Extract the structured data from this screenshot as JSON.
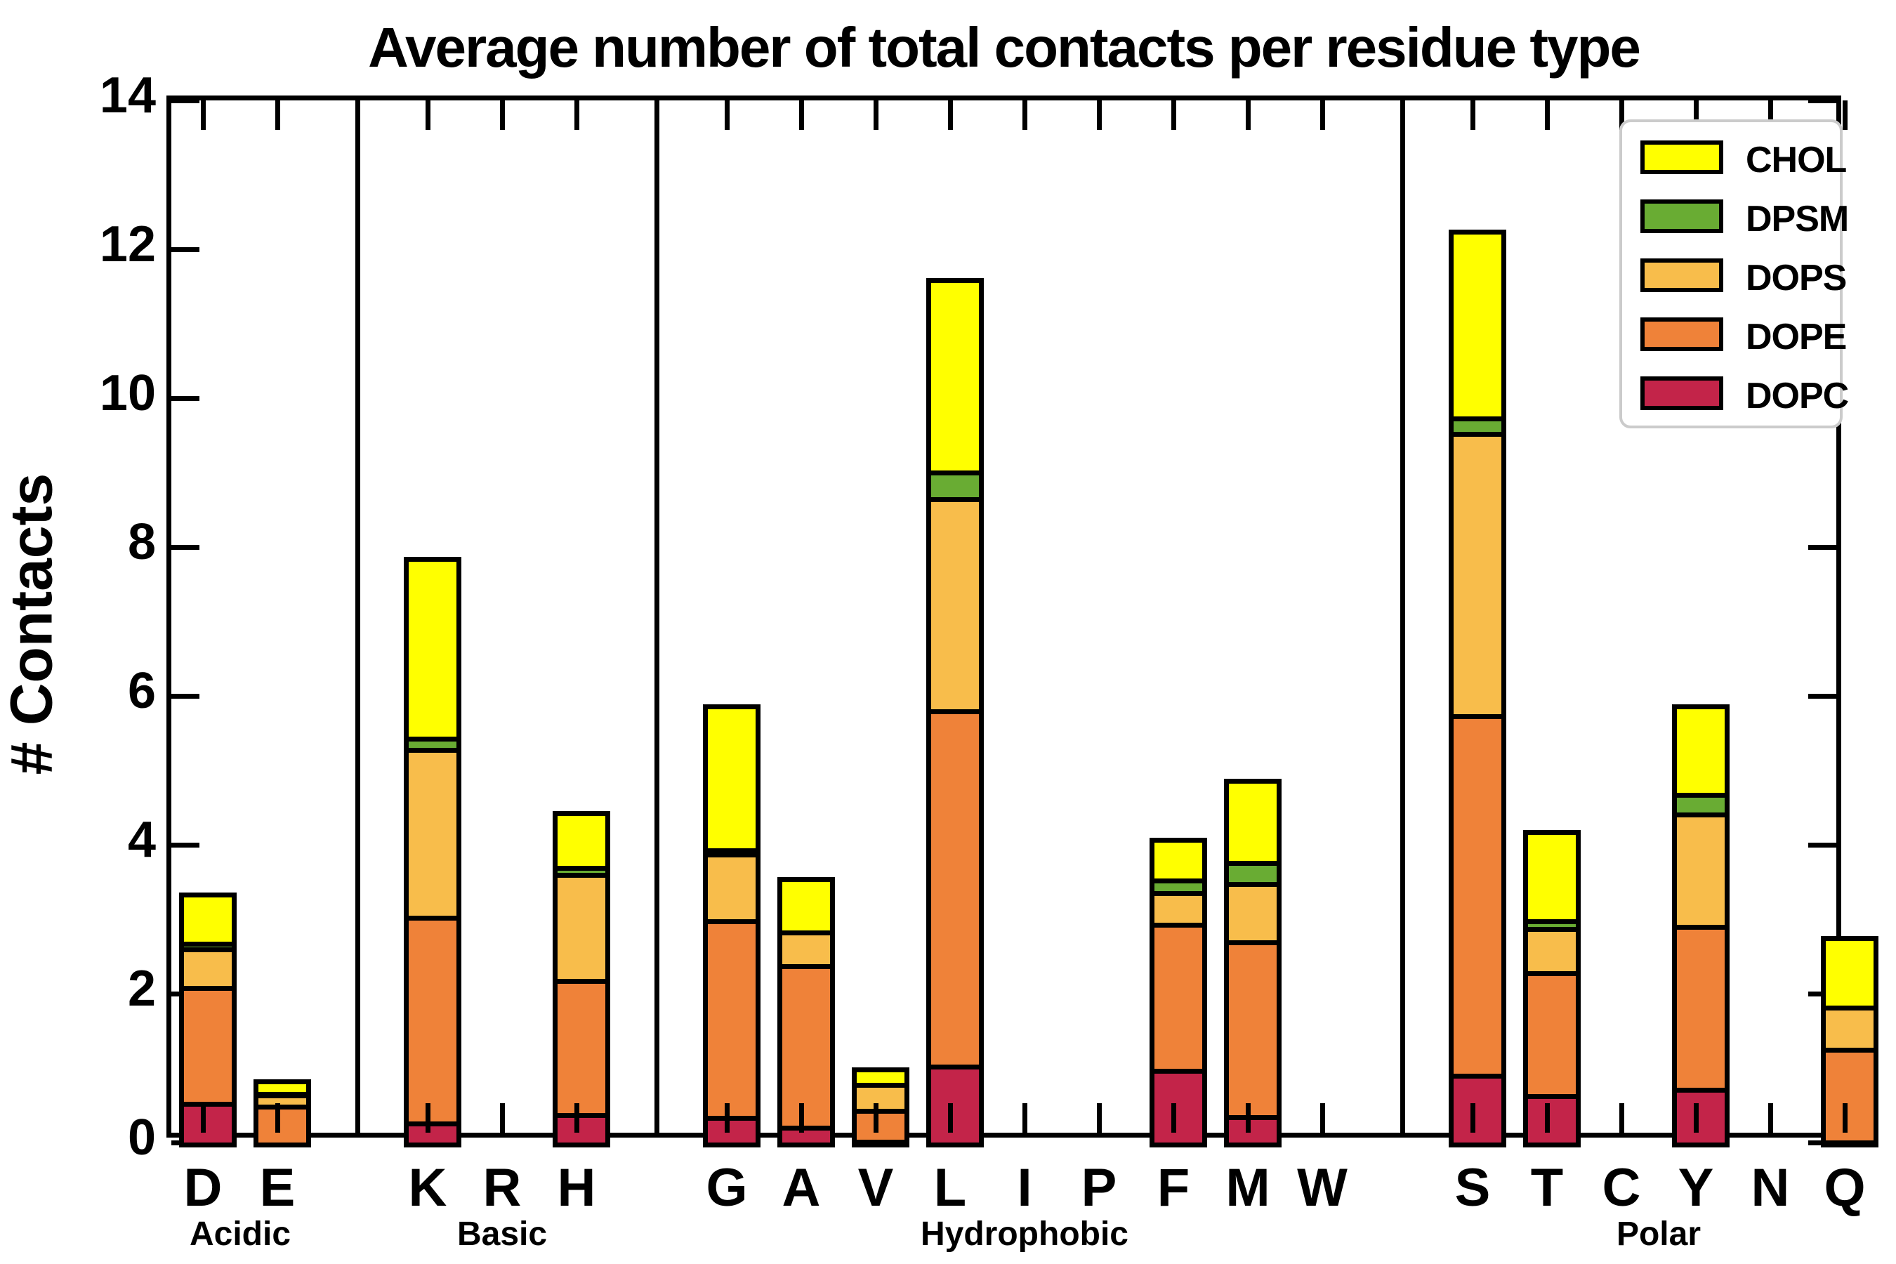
{
  "title": "Average number of total contacts per residue type",
  "ylabel": "# Contacts",
  "chart_data": {
    "type": "bar",
    "stacked": true,
    "title": "Average number of total contacts per residue type",
    "xlabel": "",
    "ylabel": "# Contacts",
    "ylim": [
      0,
      14
    ],
    "yticks": [
      0,
      2,
      4,
      6,
      8,
      10,
      12,
      14
    ],
    "grid": false,
    "legend_position": "upper right",
    "categories": [
      "D",
      "E",
      "K",
      "R",
      "H",
      "G",
      "A",
      "V",
      "L",
      "I",
      "P",
      "F",
      "M",
      "W",
      "S",
      "T",
      "C",
      "Y",
      "N",
      "Q"
    ],
    "groups": [
      {
        "label": "Acidic",
        "categories": [
          "D",
          "E"
        ]
      },
      {
        "label": "Basic",
        "categories": [
          "K",
          "R",
          "H"
        ]
      },
      {
        "label": "Hydrophobic",
        "categories": [
          "G",
          "A",
          "V",
          "L",
          "I",
          "P",
          "F",
          "M",
          "W"
        ]
      },
      {
        "label": "Polar",
        "categories": [
          "S",
          "T",
          "C",
          "Y",
          "N",
          "Q"
        ]
      }
    ],
    "series": [
      {
        "name": "DOPC",
        "color": "#C32449",
        "values": [
          0.55,
          0.0,
          0.28,
          0.0,
          0.4,
          0.36,
          0.23,
          0.04,
          1.05,
          0.0,
          0.0,
          0.99,
          0.37,
          0.0,
          0.92,
          0.65,
          0.0,
          0.74,
          0.0,
          0.03
        ]
      },
      {
        "name": "DOPE",
        "color": "#EF8239",
        "values": [
          1.55,
          0.51,
          2.77,
          0.0,
          1.8,
          2.64,
          2.17,
          0.41,
          4.77,
          0.0,
          0.0,
          1.96,
          2.35,
          0.0,
          4.83,
          1.65,
          0.0,
          2.18,
          0.0,
          1.24
        ]
      },
      {
        "name": "DOPS",
        "color": "#F8BD4B",
        "values": [
          0.52,
          0.15,
          2.25,
          0.0,
          1.42,
          0.9,
          0.45,
          0.35,
          2.85,
          0.0,
          0.0,
          0.43,
          0.78,
          0.0,
          3.8,
          0.6,
          0.0,
          1.51,
          0.0,
          0.57
        ]
      },
      {
        "name": "DPSM",
        "color": "#69AC33",
        "values": [
          0.08,
          0.02,
          0.15,
          0.0,
          0.1,
          0.05,
          0.0,
          0.0,
          0.36,
          0.0,
          0.0,
          0.17,
          0.28,
          0.0,
          0.2,
          0.1,
          0.0,
          0.27,
          0.0,
          0.0
        ]
      },
      {
        "name": "CHOL",
        "color": "#FFFF00",
        "values": [
          0.59,
          0.1,
          2.35,
          0.0,
          0.67,
          1.87,
          0.65,
          0.14,
          2.52,
          0.0,
          0.0,
          0.48,
          1.04,
          0.0,
          2.45,
          1.13,
          0.0,
          1.12,
          0.0,
          0.87
        ]
      }
    ],
    "totals": [
      3.29,
      0.78,
      7.8,
      0.0,
      4.39,
      5.82,
      3.5,
      0.94,
      11.55,
      0.0,
      0.0,
      4.03,
      4.82,
      0.0,
      12.2,
      4.13,
      0.0,
      5.82,
      0.0,
      2.71
    ],
    "legend_order_top_to_bottom": [
      "CHOL",
      "DPSM",
      "DOPS",
      "DOPE",
      "DOPC"
    ]
  }
}
